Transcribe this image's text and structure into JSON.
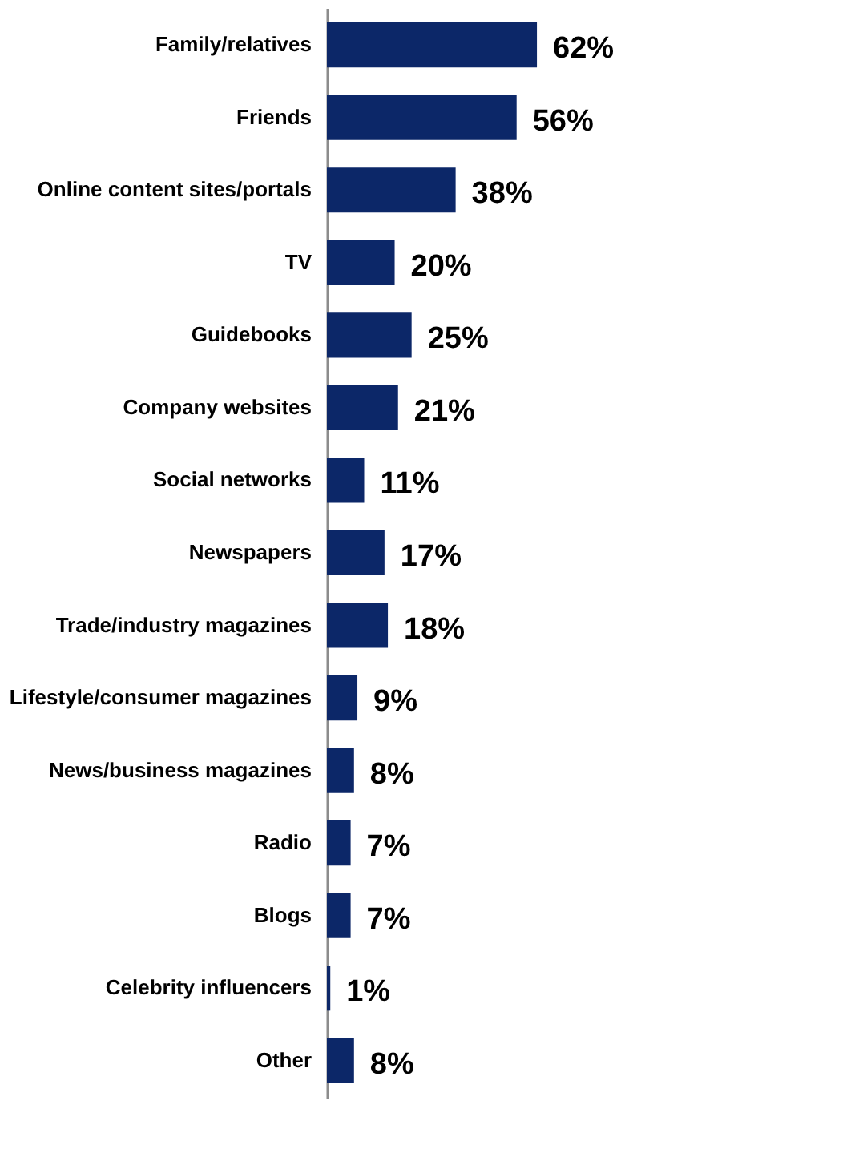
{
  "chart_data": {
    "type": "bar",
    "orientation": "horizontal",
    "categories": [
      "Family/relatives",
      "Friends",
      "Online content sites/portals",
      "TV",
      "Guidebooks",
      "Company websites",
      "Social networks",
      "Newspapers",
      "Trade/industry magazines",
      "Lifestyle/consumer magazines",
      "News/business magazines",
      "Radio",
      "Blogs",
      "Celebrity influencers",
      "Other"
    ],
    "values": [
      62,
      56,
      38,
      20,
      25,
      21,
      11,
      17,
      18,
      9,
      8,
      7,
      7,
      1,
      8
    ],
    "value_labels": [
      "62%",
      "56%",
      "38%",
      "20%",
      "25%",
      "21%",
      "11%",
      "17%",
      "18%",
      "9%",
      "8%",
      "7%",
      "7%",
      "1%",
      "8%"
    ],
    "color": "#0c2768",
    "grid": false
  }
}
